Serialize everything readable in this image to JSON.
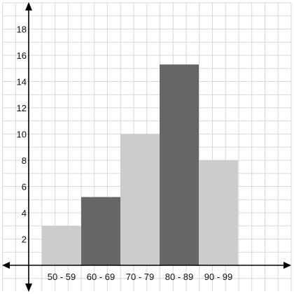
{
  "chart_data": {
    "type": "bar",
    "title": "",
    "xlabel": "",
    "ylabel": "",
    "categories": [
      "50 - 59",
      "60 - 69",
      "70 - 79",
      "80 - 89",
      "90 - 99"
    ],
    "values": [
      3,
      5.2,
      10,
      15.3,
      8
    ],
    "bar_colors": [
      "#cccccc",
      "#666666",
      "#cccccc",
      "#666666",
      "#cccccc"
    ],
    "ylim": [
      0,
      19
    ],
    "yticks": [
      2,
      4,
      6,
      8,
      10,
      12,
      14,
      16,
      18
    ],
    "grid": true,
    "axis_arrows": true
  }
}
